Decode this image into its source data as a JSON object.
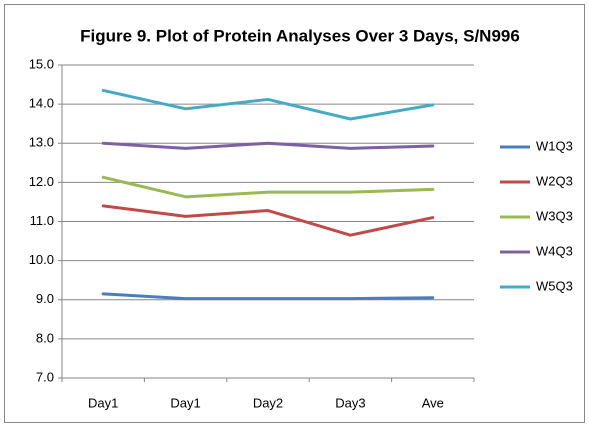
{
  "chart_data": {
    "type": "line",
    "title": "Figure 9. Plot of Protein Analyses Over 3 Days, S/N996",
    "categories": [
      "Day1",
      "Day1",
      "Day2",
      "Day3",
      "Ave"
    ],
    "series": [
      {
        "name": "W1Q3",
        "color": "#4a7ebb",
        "values": [
          9.15,
          9.03,
          9.03,
          9.03,
          9.05
        ]
      },
      {
        "name": "W2Q3",
        "color": "#be4b48",
        "values": [
          11.4,
          11.13,
          11.28,
          10.65,
          11.1
        ]
      },
      {
        "name": "W3Q3",
        "color": "#98b954",
        "values": [
          12.13,
          11.63,
          11.75,
          11.75,
          11.82
        ]
      },
      {
        "name": "W4Q3",
        "color": "#7d60a0",
        "values": [
          13.0,
          12.87,
          13.0,
          12.87,
          12.93
        ]
      },
      {
        "name": "W5Q3",
        "color": "#46aac5",
        "values": [
          14.35,
          13.88,
          14.12,
          13.62,
          13.98
        ]
      }
    ],
    "ylim": [
      7,
      15
    ],
    "yticks": [
      {
        "value": 7,
        "label": "7.0"
      },
      {
        "value": 8,
        "label": "8.0"
      },
      {
        "value": 9,
        "label": "9.0"
      },
      {
        "value": 10,
        "label": "10.0"
      },
      {
        "value": 11,
        "label": "11.0"
      },
      {
        "value": 12,
        "label": "12.0"
      },
      {
        "value": 13,
        "label": "13.0"
      },
      {
        "value": 14,
        "label": "14.0"
      },
      {
        "value": 15,
        "label": "15.0"
      }
    ],
    "grid": true,
    "legend": "right"
  }
}
